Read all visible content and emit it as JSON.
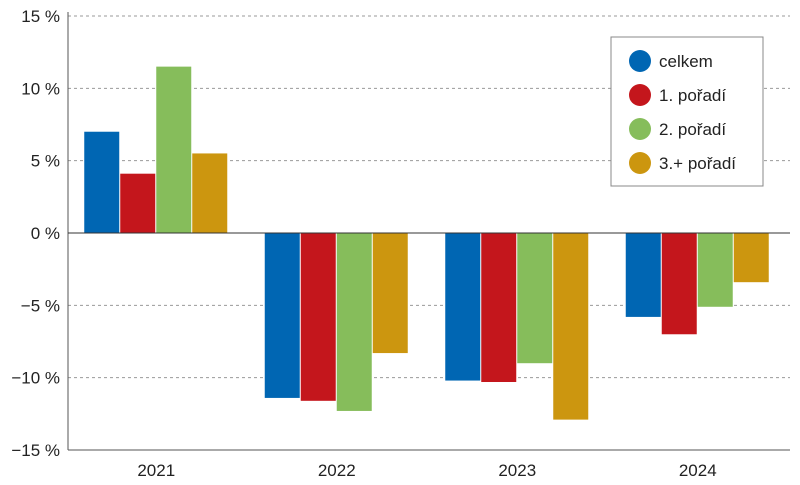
{
  "chart_data": {
    "type": "bar",
    "categories": [
      "2021",
      "2022",
      "2023",
      "2024"
    ],
    "series": [
      {
        "name": "celkem",
        "color": "#0066b3",
        "values": [
          7.0,
          -11.4,
          -10.2,
          -5.8
        ]
      },
      {
        "name": "1. pořadí",
        "color": "#c4161c",
        "values": [
          4.1,
          -11.6,
          -10.3,
          -7.0
        ]
      },
      {
        "name": "2. pořadí",
        "color": "#86bd5b",
        "values": [
          11.5,
          -12.3,
          -9.0,
          -5.1
        ]
      },
      {
        "name": "3.+ pořadí",
        "color": "#cc960f",
        "values": [
          5.5,
          -8.3,
          -12.9,
          -3.4
        ]
      }
    ],
    "yticks": [
      {
        "value": 15,
        "label": "15 %"
      },
      {
        "value": 10,
        "label": "10 %"
      },
      {
        "value": 5,
        "label": "5 %"
      },
      {
        "value": 0,
        "label": "0 %"
      },
      {
        "value": -5,
        "label": "−5 %"
      },
      {
        "value": -10,
        "label": "−10 %"
      },
      {
        "value": -15,
        "label": "−15 %"
      }
    ],
    "ylim": [
      -15,
      15
    ],
    "grid": true,
    "legend_position": "top-right"
  }
}
